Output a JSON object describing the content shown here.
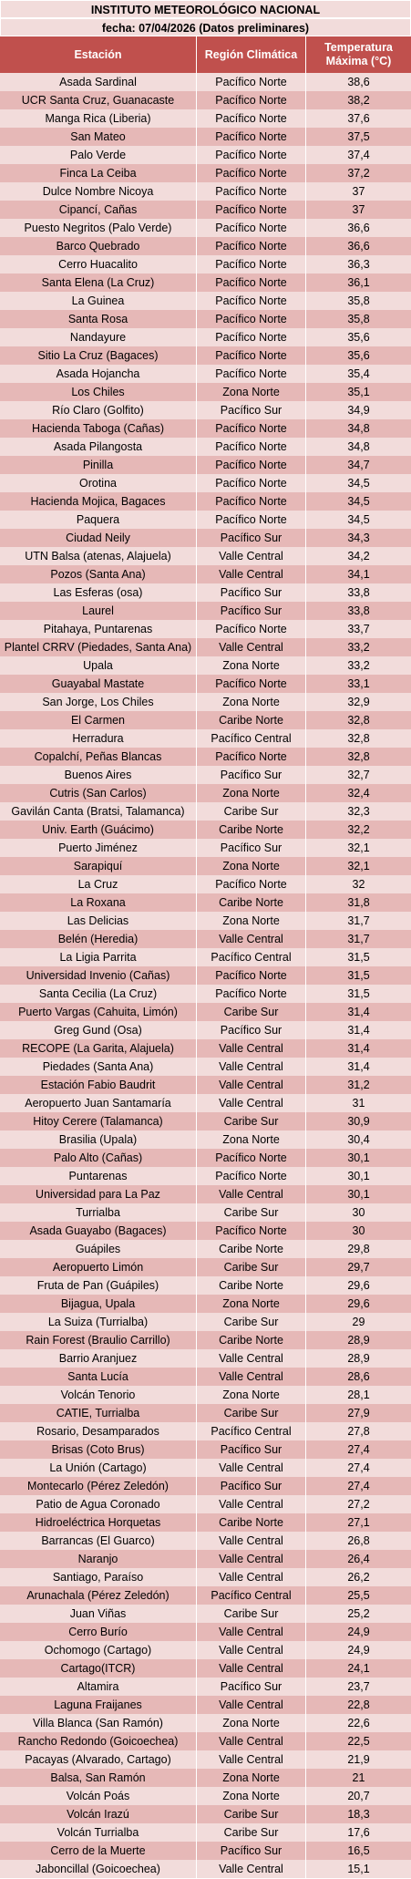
{
  "title": "INSTITUTO METEOROLÓGICO NACIONAL",
  "date_line": "fecha: 07/04/2026 (Datos preliminares)",
  "columns": [
    "Estación",
    "Región Climática",
    "Temperatura Máxima (°C)"
  ],
  "rows": [
    [
      "Asada Sardinal",
      "Pacífico Norte",
      "38,6"
    ],
    [
      "UCR Santa Cruz, Guanacaste",
      "Pacífico Norte",
      "38,2"
    ],
    [
      "Manga Rica (Liberia)",
      "Pacífico Norte",
      "37,6"
    ],
    [
      "San Mateo",
      "Pacífico Norte",
      "37,5"
    ],
    [
      "Palo Verde",
      "Pacífico Norte",
      "37,4"
    ],
    [
      "Finca La Ceiba",
      "Pacífico Norte",
      "37,2"
    ],
    [
      "Dulce Nombre Nicoya",
      "Pacífico Norte",
      "37"
    ],
    [
      "Cipancí, Cañas",
      "Pacífico Norte",
      "37"
    ],
    [
      "Puesto Negritos (Palo Verde)",
      "Pacífico Norte",
      "36,6"
    ],
    [
      "Barco Quebrado",
      "Pacífico Norte",
      "36,6"
    ],
    [
      "Cerro Huacalito",
      "Pacífico Norte",
      "36,3"
    ],
    [
      "Santa Elena (La Cruz)",
      "Pacífico Norte",
      "36,1"
    ],
    [
      "La Guinea",
      "Pacífico Norte",
      "35,8"
    ],
    [
      "Santa Rosa",
      "Pacífico Norte",
      "35,8"
    ],
    [
      "Nandayure",
      "Pacífico Norte",
      "35,6"
    ],
    [
      "Sitio La Cruz (Bagaces)",
      "Pacífico Norte",
      "35,6"
    ],
    [
      "Asada Hojancha",
      "Pacífico Norte",
      "35,4"
    ],
    [
      "Los Chiles",
      "Zona Norte",
      "35,1"
    ],
    [
      "Río Claro (Golfito)",
      "Pacífico Sur",
      "34,9"
    ],
    [
      "Hacienda Taboga (Cañas)",
      "Pacífico Norte",
      "34,8"
    ],
    [
      "Asada Pilangosta",
      "Pacífico Norte",
      "34,8"
    ],
    [
      "Pinilla",
      "Pacífico Norte",
      "34,7"
    ],
    [
      "Orotina",
      "Pacífico Norte",
      "34,5"
    ],
    [
      "Hacienda Mojica, Bagaces",
      "Pacífico Norte",
      "34,5"
    ],
    [
      "Paquera",
      "Pacífico Norte",
      "34,5"
    ],
    [
      "Ciudad Neily",
      "Pacífico Sur",
      "34,3"
    ],
    [
      "UTN Balsa (atenas, Alajuela)",
      "Valle Central",
      "34,2"
    ],
    [
      "Pozos (Santa Ana)",
      "Valle Central",
      "34,1"
    ],
    [
      "Las Esferas (osa)",
      "Pacífico Sur",
      "33,8"
    ],
    [
      "Laurel",
      "Pacífico Sur",
      "33,8"
    ],
    [
      "Pitahaya, Puntarenas",
      "Pacífico Norte",
      "33,7"
    ],
    [
      "Plantel CRRV (Piedades, Santa Ana)",
      "Valle Central",
      "33,2"
    ],
    [
      "Upala",
      "Zona Norte",
      "33,2"
    ],
    [
      "Guayabal Mastate",
      "Pacífico Norte",
      "33,1"
    ],
    [
      "San Jorge, Los Chiles",
      "Zona Norte",
      "32,9"
    ],
    [
      "El Carmen",
      "Caribe Norte",
      "32,8"
    ],
    [
      "Herradura",
      "Pacífico Central",
      "32,8"
    ],
    [
      "Copalchí, Peñas Blancas",
      "Pacífico Norte",
      "32,8"
    ],
    [
      "Buenos Aires",
      "Pacífico Sur",
      "32,7"
    ],
    [
      "Cutris (San Carlos)",
      "Zona Norte",
      "32,4"
    ],
    [
      "Gavilán Canta (Bratsi, Talamanca)",
      "Caribe Sur",
      "32,3"
    ],
    [
      "Univ. Earth (Guácimo)",
      "Caribe Norte",
      "32,2"
    ],
    [
      "Puerto Jiménez",
      "Pacífico Sur",
      "32,1"
    ],
    [
      "Sarapiquí",
      "Zona Norte",
      "32,1"
    ],
    [
      "La Cruz",
      "Pacífico Norte",
      "32"
    ],
    [
      "La Roxana",
      "Caribe Norte",
      "31,8"
    ],
    [
      "Las Delicias",
      "Zona Norte",
      "31,7"
    ],
    [
      "Belén (Heredia)",
      "Valle Central",
      "31,7"
    ],
    [
      "La Ligia Parrita",
      "Pacífico Central",
      "31,5"
    ],
    [
      "Universidad Invenio (Cañas)",
      "Pacífico Norte",
      "31,5"
    ],
    [
      "Santa Cecilia (La Cruz)",
      "Pacífico Norte",
      "31,5"
    ],
    [
      "Puerto Vargas (Cahuita, Limón)",
      "Caribe Sur",
      "31,4"
    ],
    [
      "Greg Gund (Osa)",
      "Pacífico Sur",
      "31,4"
    ],
    [
      "RECOPE (La Garita, Alajuela)",
      "Valle Central",
      "31,4"
    ],
    [
      "Piedades (Santa Ana)",
      "Valle Central",
      "31,4"
    ],
    [
      "Estación Fabio Baudrit",
      "Valle Central",
      "31,2"
    ],
    [
      "Aeropuerto Juan Santamaría",
      "Valle Central",
      "31"
    ],
    [
      "Hitoy Cerere (Talamanca)",
      "Caribe Sur",
      "30,9"
    ],
    [
      "Brasilia (Upala)",
      "Zona Norte",
      "30,4"
    ],
    [
      "Palo Alto (Cañas)",
      "Pacífico Norte",
      "30,1"
    ],
    [
      "Puntarenas",
      "Pacífico Norte",
      "30,1"
    ],
    [
      "Universidad para La Paz",
      "Valle Central",
      "30,1"
    ],
    [
      "Turrialba",
      "Caribe Sur",
      "30"
    ],
    [
      "Asada Guayabo (Bagaces)",
      "Pacífico Norte",
      "30"
    ],
    [
      "Guápiles",
      "Caribe Norte",
      "29,8"
    ],
    [
      "Aeropuerto Limón",
      "Caribe Sur",
      "29,7"
    ],
    [
      "Fruta de Pan (Guápiles)",
      "Caribe Norte",
      "29,6"
    ],
    [
      "Bijagua, Upala",
      "Zona Norte",
      "29,6"
    ],
    [
      "La Suiza (Turrialba)",
      "Caribe Sur",
      "29"
    ],
    [
      "Rain Forest (Braulio Carrillo)",
      "Caribe Norte",
      "28,9"
    ],
    [
      "Barrio Aranjuez",
      "Valle Central",
      "28,9"
    ],
    [
      "Santa Lucía",
      "Valle Central",
      "28,6"
    ],
    [
      "Volcán Tenorio",
      "Zona Norte",
      "28,1"
    ],
    [
      "CATIE, Turrialba",
      "Caribe Sur",
      "27,9"
    ],
    [
      "Rosario, Desamparados",
      "Pacífico Central",
      "27,8"
    ],
    [
      "Brisas (Coto Brus)",
      "Pacífico Sur",
      "27,4"
    ],
    [
      "La Unión (Cartago)",
      "Valle Central",
      "27,4"
    ],
    [
      "Montecarlo (Pérez Zeledón)",
      "Pacífico Sur",
      "27,4"
    ],
    [
      "Patio de Agua Coronado",
      "Valle Central",
      "27,2"
    ],
    [
      "Hidroeléctrica Horquetas",
      "Caribe Norte",
      "27,1"
    ],
    [
      "Barrancas (El Guarco)",
      "Valle Central",
      "26,8"
    ],
    [
      "Naranjo",
      "Valle Central",
      "26,4"
    ],
    [
      "Santiago, Paraíso",
      "Valle Central",
      "26,2"
    ],
    [
      "Arunachala (Pérez Zeledón)",
      "Pacífico Central",
      "25,5"
    ],
    [
      "Juan Viñas",
      "Caribe Sur",
      "25,2"
    ],
    [
      "Cerro Burío",
      "Valle Central",
      "24,9"
    ],
    [
      "Ochomogo (Cartago)",
      "Valle Central",
      "24,9"
    ],
    [
      "Cartago(ITCR)",
      "Valle Central",
      "24,1"
    ],
    [
      "Altamira",
      "Pacífico Sur",
      "23,7"
    ],
    [
      "Laguna Fraijanes",
      "Valle Central",
      "22,8"
    ],
    [
      "Villa Blanca (San Ramón)",
      "Zona Norte",
      "22,6"
    ],
    [
      "Rancho Redondo (Goicoechea)",
      "Valle Central",
      "22,5"
    ],
    [
      "Pacayas (Alvarado, Cartago)",
      "Valle Central",
      "21,9"
    ],
    [
      "Balsa, San Ramón",
      "Zona Norte",
      "21"
    ],
    [
      "Volcán Poás",
      "Zona Norte",
      "20,7"
    ],
    [
      "Volcán Irazú",
      "Caribe Sur",
      "18,3"
    ],
    [
      "Volcán Turrialba",
      "Caribe Sur",
      "17,6"
    ],
    [
      "Cerro de la Muerte",
      "Pacífico Sur",
      "16,5"
    ],
    [
      "Jaboncillal (Goicoechea)",
      "Valle Central",
      "15,1"
    ]
  ]
}
